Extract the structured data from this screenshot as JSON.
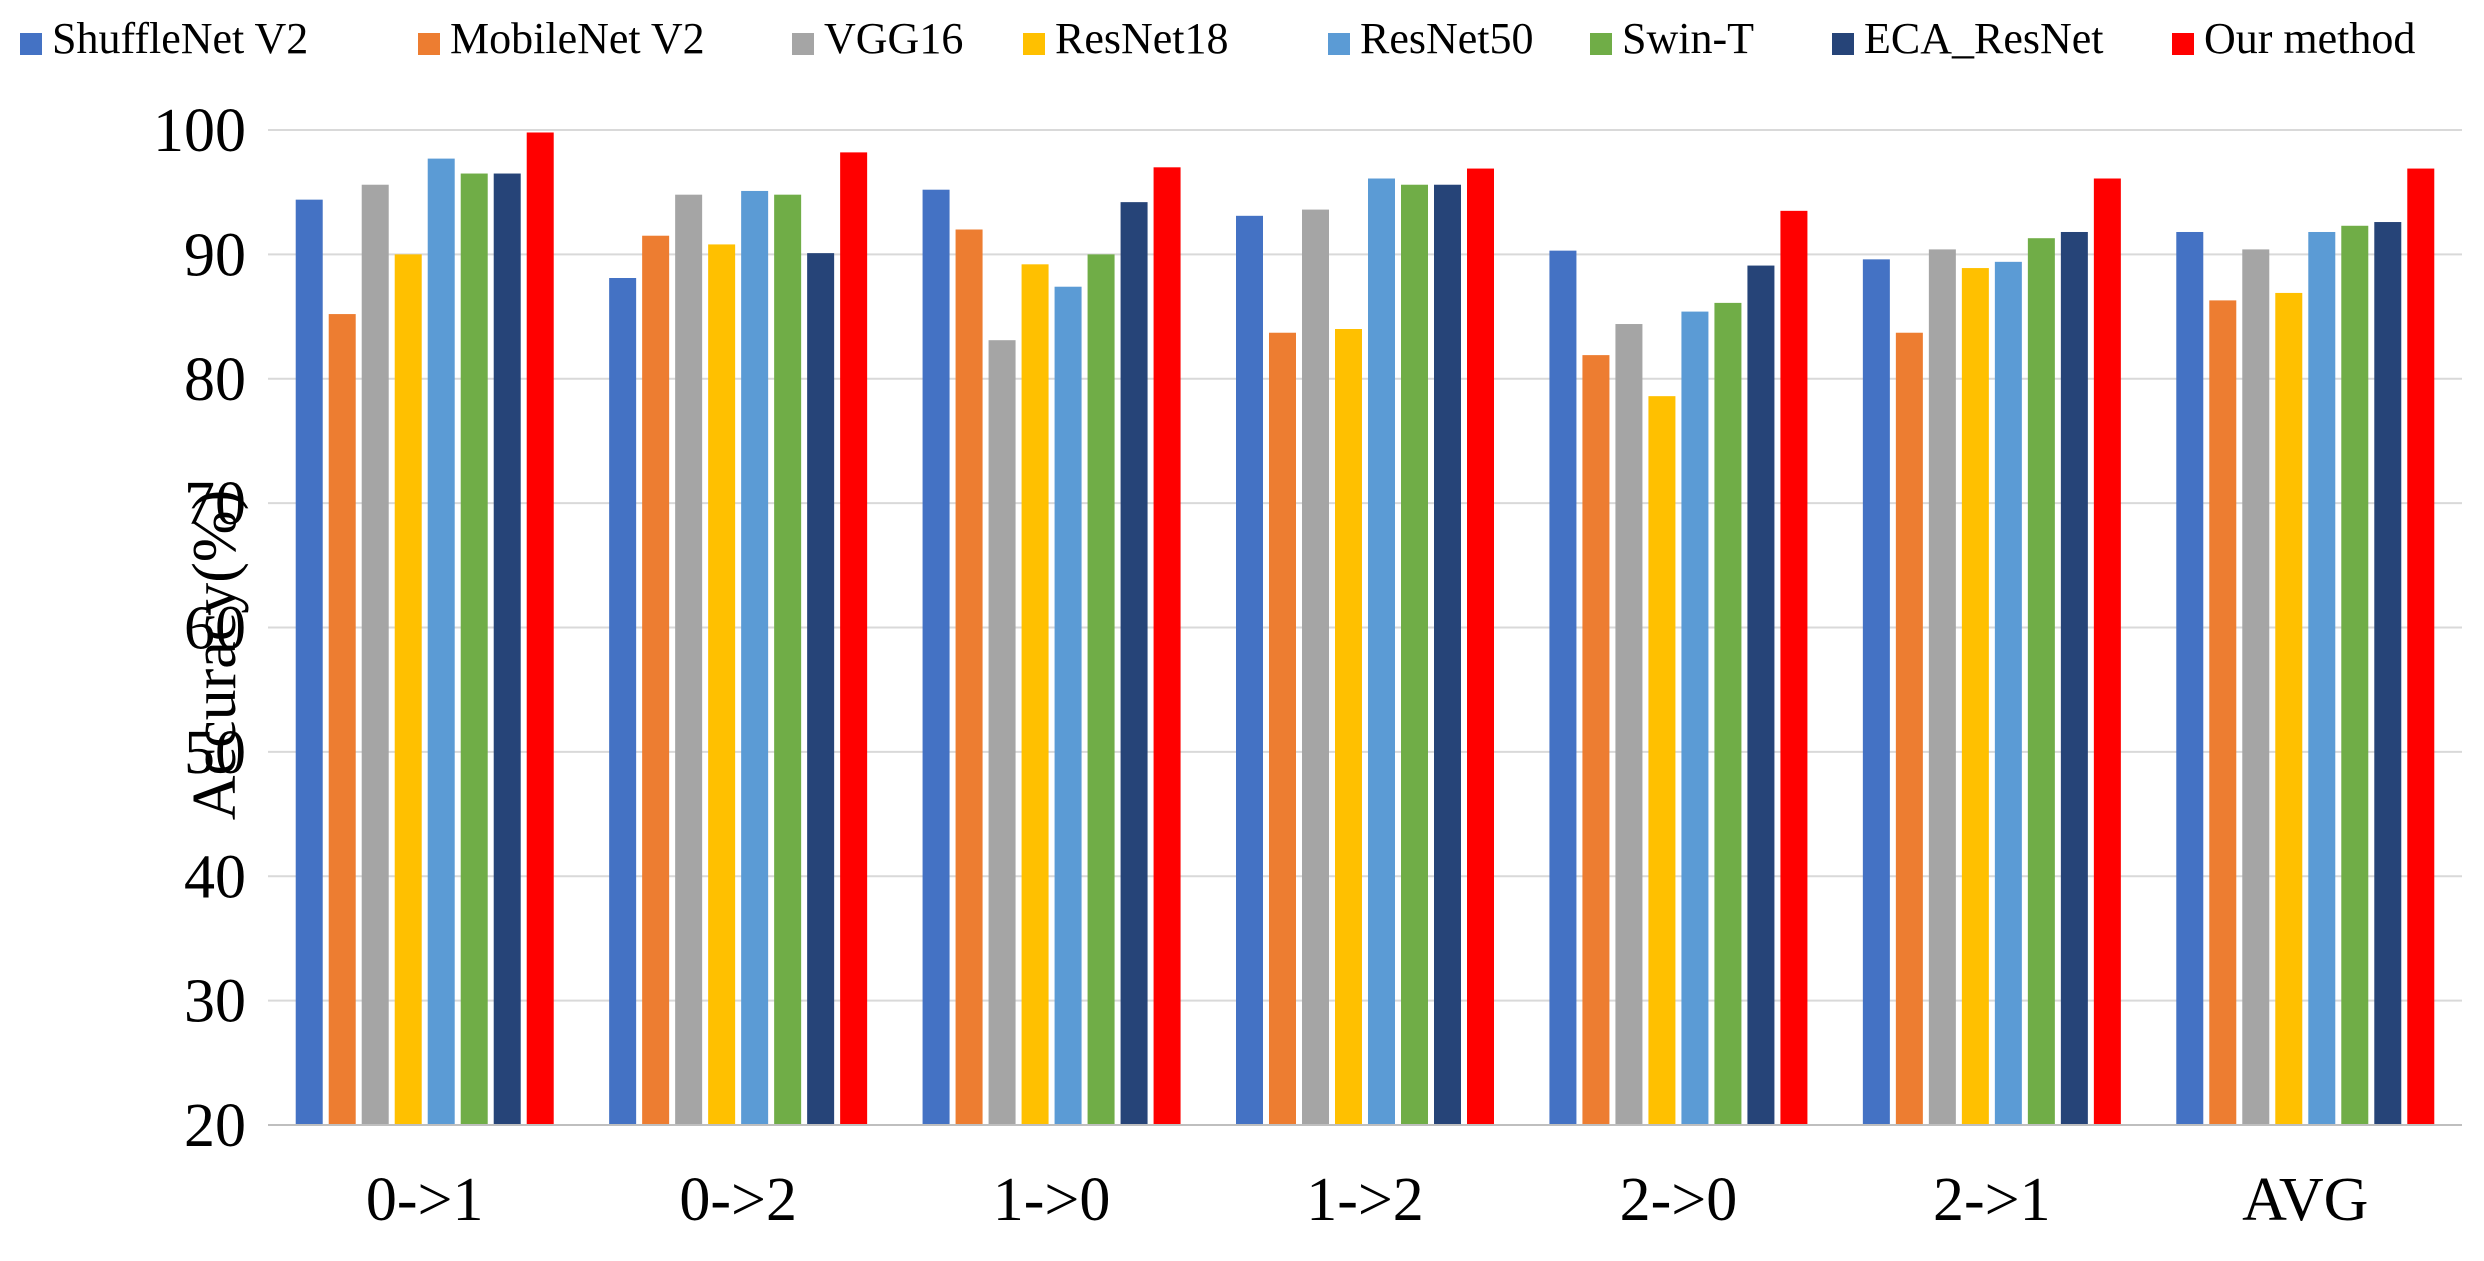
{
  "chart_data": {
    "type": "bar",
    "title": "",
    "xlabel": "",
    "ylabel": "Accuracy(%)",
    "ylim": [
      20,
      100
    ],
    "yticks": [
      20,
      30,
      40,
      50,
      60,
      70,
      80,
      90,
      100
    ],
    "grid": true,
    "legend_position": "top",
    "categories": [
      "0->1",
      "0->2",
      "1->0",
      "1->2",
      "2->0",
      "2->1",
      "AVG"
    ],
    "series": [
      {
        "name": "ShuffleNet V2",
        "color": "#4472C4",
        "values": [
          94.4,
          88.1,
          95.2,
          93.1,
          90.3,
          89.6,
          91.8
        ]
      },
      {
        "name": "MobileNet V2",
        "color": "#ED7D31",
        "values": [
          85.2,
          91.5,
          92.0,
          83.7,
          81.9,
          83.7,
          86.3
        ]
      },
      {
        "name": "VGG16",
        "color": "#A5A5A5",
        "values": [
          95.6,
          94.8,
          83.1,
          93.6,
          84.4,
          90.4,
          90.4
        ]
      },
      {
        "name": "ResNet18",
        "color": "#FFC000",
        "values": [
          90.0,
          90.8,
          89.2,
          84.0,
          78.6,
          88.9,
          86.9
        ]
      },
      {
        "name": "ResNet50",
        "color": "#5B9BD5",
        "values": [
          97.7,
          95.1,
          87.4,
          96.1,
          85.4,
          89.4,
          91.8
        ]
      },
      {
        "name": "Swin-T",
        "color": "#70AD47",
        "values": [
          96.5,
          94.8,
          90.0,
          95.6,
          86.1,
          91.3,
          92.3
        ]
      },
      {
        "name": "ECA_ResNet",
        "color": "#264478",
        "values": [
          96.5,
          90.1,
          94.2,
          95.6,
          89.1,
          91.8,
          92.6
        ]
      },
      {
        "name": "Our method",
        "color": "#FF0000",
        "values": [
          99.8,
          98.2,
          97.0,
          96.9,
          93.5,
          96.1,
          96.9
        ]
      }
    ]
  }
}
